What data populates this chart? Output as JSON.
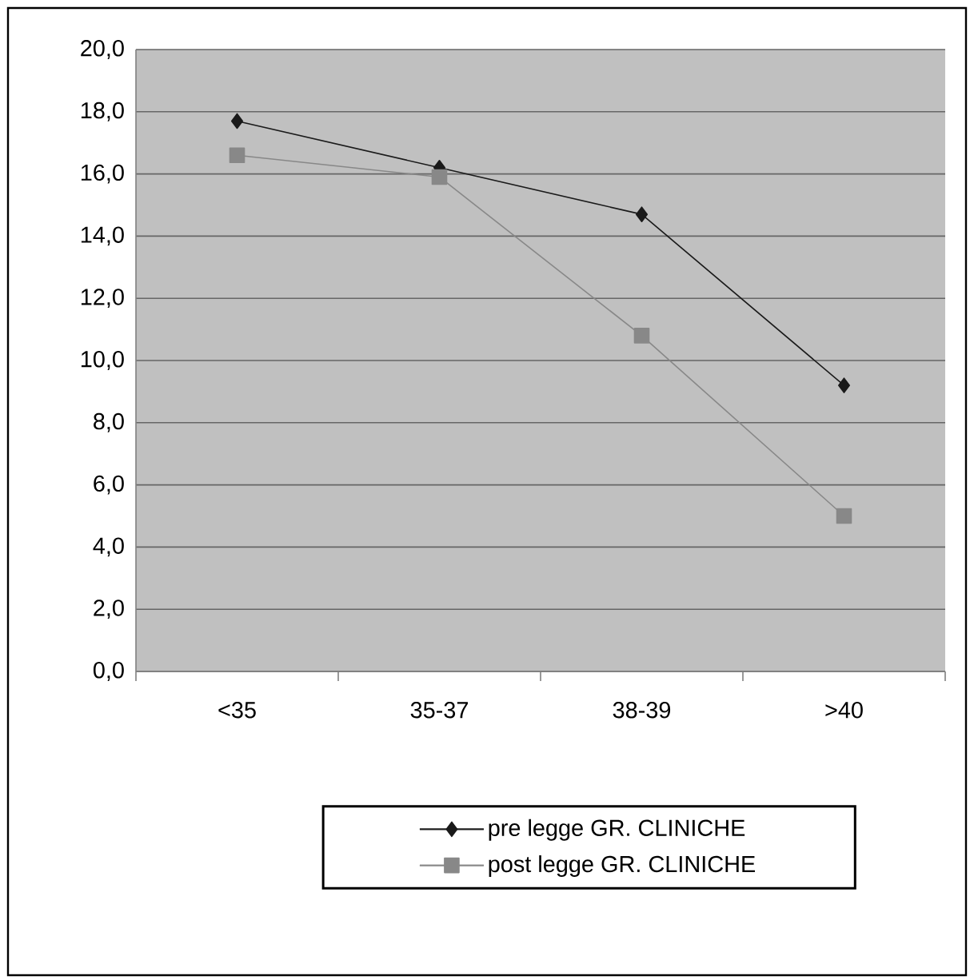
{
  "chart_data": {
    "type": "line",
    "categories": [
      "<35",
      "35-37",
      "38-39",
      ">40"
    ],
    "series": [
      {
        "name": "pre legge GR. CLINICHE",
        "color": "#1a1a1a",
        "marker": "diamond",
        "values": [
          17.7,
          16.2,
          14.7,
          9.2
        ]
      },
      {
        "name": "post legge GR. CLINICHE",
        "color": "#888888",
        "marker": "square",
        "values": [
          16.6,
          15.9,
          10.8,
          5.0
        ]
      }
    ],
    "ylim": [
      0,
      20
    ],
    "yticks": [
      {
        "value": 0,
        "label": "0,0"
      },
      {
        "value": 2,
        "label": "2,0"
      },
      {
        "value": 4,
        "label": "4,0"
      },
      {
        "value": 6,
        "label": "6,0"
      },
      {
        "value": 8,
        "label": "8,0"
      },
      {
        "value": 10,
        "label": "10,0"
      },
      {
        "value": 12,
        "label": "12,0"
      },
      {
        "value": 14,
        "label": "14,0"
      },
      {
        "value": 16,
        "label": "16,0"
      },
      {
        "value": 18,
        "label": "18,0"
      },
      {
        "value": 20,
        "label": "20,0"
      }
    ],
    "grid": "y",
    "legend": "bottom",
    "line_style": "solid"
  }
}
